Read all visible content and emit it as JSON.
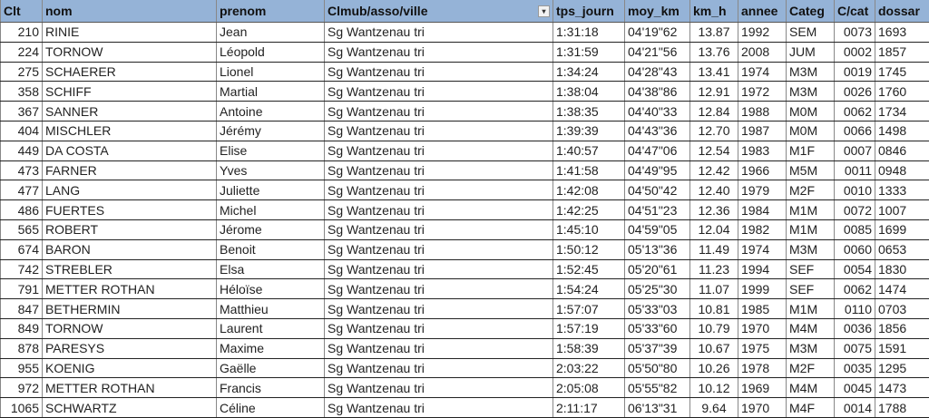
{
  "colors": {
    "header_bg": "#95b3d7"
  },
  "headers": [
    "Clt",
    "nom",
    "prenom",
    "Clmub/asso/ville",
    "tps_journ",
    "moy_km",
    "km_h",
    "annee",
    "Categ",
    "C/cat",
    "dossar"
  ],
  "filter_icon": "filter-dropdown-icon",
  "rows": [
    [
      "210",
      "RINIE",
      "Jean",
      "Sg Wantzenau tri",
      "1:31:18",
      "04'19\"62",
      "13.87",
      "1992",
      "SEM",
      "0073",
      "1693"
    ],
    [
      "224",
      "TORNOW",
      "Léopold",
      "Sg Wantzenau tri",
      "1:31:59",
      "04'21\"56",
      "13.76",
      "2008",
      "JUM",
      "0002",
      "1857"
    ],
    [
      "275",
      "SCHAERER",
      "Lionel",
      "Sg Wantzenau tri",
      "1:34:24",
      "04'28\"43",
      "13.41",
      "1974",
      "M3M",
      "0019",
      "1745"
    ],
    [
      "358",
      "SCHIFF",
      "Martial",
      "Sg Wantzenau tri",
      "1:38:04",
      "04'38\"86",
      "12.91",
      "1972",
      "M3M",
      "0026",
      "1760"
    ],
    [
      "367",
      "SANNER",
      "Antoine",
      "Sg Wantzenau tri",
      "1:38:35",
      "04'40\"33",
      "12.84",
      "1988",
      "M0M",
      "0062",
      "1734"
    ],
    [
      "404",
      "MISCHLER",
      "Jérémy",
      "Sg Wantzenau tri",
      "1:39:39",
      "04'43\"36",
      "12.70",
      "1987",
      "M0M",
      "0066",
      "1498"
    ],
    [
      "449",
      "DA COSTA",
      "Elise",
      "Sg Wantzenau tri",
      "1:40:57",
      "04'47\"06",
      "12.54",
      "1983",
      "M1F",
      "0007",
      "0846"
    ],
    [
      "473",
      "FARNER",
      "Yves",
      "Sg Wantzenau tri",
      "1:41:58",
      "04'49\"95",
      "12.42",
      "1966",
      "M5M",
      "0011",
      "0948"
    ],
    [
      "477",
      "LANG",
      "Juliette",
      "Sg Wantzenau tri",
      "1:42:08",
      "04'50\"42",
      "12.40",
      "1979",
      "M2F",
      "0010",
      "1333"
    ],
    [
      "486",
      "FUERTES",
      "Michel",
      "Sg Wantzenau tri",
      "1:42:25",
      "04'51\"23",
      "12.36",
      "1984",
      "M1M",
      "0072",
      "1007"
    ],
    [
      "565",
      "ROBERT",
      "Jérome",
      "Sg Wantzenau tri",
      "1:45:10",
      "04'59\"05",
      "12.04",
      "1982",
      "M1M",
      "0085",
      "1699"
    ],
    [
      "674",
      "BARON",
      "Benoit",
      "Sg Wantzenau tri",
      "1:50:12",
      "05'13\"36",
      "11.49",
      "1974",
      "M3M",
      "0060",
      "0653"
    ],
    [
      "742",
      "STREBLER",
      "Elsa",
      "Sg Wantzenau tri",
      "1:52:45",
      "05'20\"61",
      "11.23",
      "1994",
      "SEF",
      "0054",
      "1830"
    ],
    [
      "791",
      "METTER ROTHAN",
      "Héloïse",
      "Sg Wantzenau tri",
      "1:54:24",
      "05'25\"30",
      "11.07",
      "1999",
      "SEF",
      "0062",
      "1474"
    ],
    [
      "847",
      "BETHERMIN",
      "Matthieu",
      "Sg Wantzenau tri",
      "1:57:07",
      "05'33\"03",
      "10.81",
      "1985",
      "M1M",
      "0110",
      "0703"
    ],
    [
      "849",
      "TORNOW",
      "Laurent",
      "Sg Wantzenau tri",
      "1:57:19",
      "05'33\"60",
      "10.79",
      "1970",
      "M4M",
      "0036",
      "1856"
    ],
    [
      "878",
      "PARESYS",
      "Maxime",
      "Sg Wantzenau tri",
      "1:58:39",
      "05'37\"39",
      "10.67",
      "1975",
      "M3M",
      "0075",
      "1591"
    ],
    [
      "955",
      "KOENIG",
      "Gaëlle",
      "Sg Wantzenau tri",
      "2:03:22",
      "05'50\"80",
      "10.26",
      "1978",
      "M2F",
      "0035",
      "1295"
    ],
    [
      "972",
      "METTER ROTHAN",
      "Francis",
      "Sg Wantzenau tri",
      "2:05:08",
      "05'55\"82",
      "10.12",
      "1969",
      "M4M",
      "0045",
      "1473"
    ],
    [
      "1065",
      "SCHWARTZ",
      "Céline",
      "Sg Wantzenau tri",
      "2:11:17",
      "06'13\"31",
      "9.64",
      "1970",
      "M4F",
      "0014",
      "1788"
    ]
  ]
}
